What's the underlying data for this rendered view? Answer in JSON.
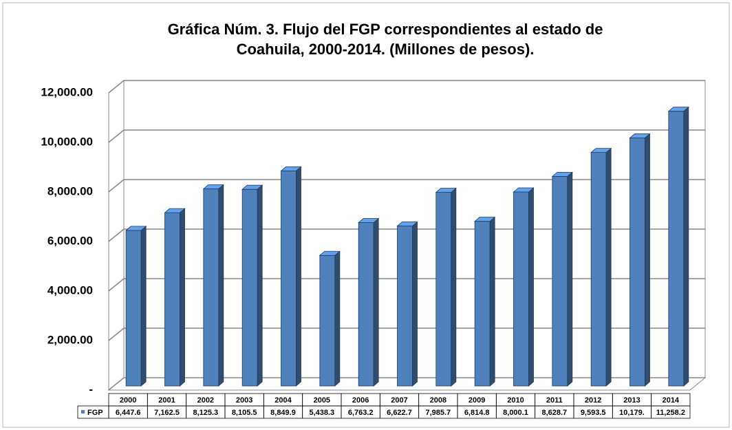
{
  "chart_data": {
    "type": "bar3d",
    "title": [
      "Gráfica Núm. 3. Flujo del FGP correspondientes al estado de",
      "Coahuila, 2000-2014. (Millones de pesos)."
    ],
    "categories": [
      "2000",
      "2001",
      "2002",
      "2003",
      "2004",
      "2005",
      "2006",
      "2007",
      "2008",
      "2009",
      "2010",
      "2011",
      "2012",
      "2013",
      "2014"
    ],
    "series": [
      {
        "name": "FGP",
        "color": "#4f81bd",
        "values": [
          6447.6,
          7162.5,
          8125.3,
          8105.5,
          8849.9,
          5438.3,
          6763.2,
          6622.7,
          7985.7,
          6814.8,
          8000.1,
          8628.7,
          9593.5,
          10179,
          11258.2
        ],
        "value_labels": [
          "6,447.6",
          "7,162.5",
          "8,125.3",
          "8,105.5",
          "8,849.9",
          "5,438.3",
          "6,763.2",
          "6,622.7",
          "7,985.7",
          "6,814.8",
          "8,000.1",
          "8,628.7",
          "9,593.5",
          "10,179.",
          "11,258.2"
        ]
      }
    ],
    "ylim": [
      0,
      12000
    ],
    "yticks": [
      {
        "value": 0,
        "label": "-"
      },
      {
        "value": 2000,
        "label": "2,000.00"
      },
      {
        "value": 4000,
        "label": "4,000.00"
      },
      {
        "value": 6000,
        "label": "6,000.00"
      },
      {
        "value": 8000,
        "label": "8,000.00"
      },
      {
        "value": 10000,
        "label": "10,000.00"
      },
      {
        "value": 12000,
        "label": "12,000.00"
      }
    ],
    "grid": true
  }
}
